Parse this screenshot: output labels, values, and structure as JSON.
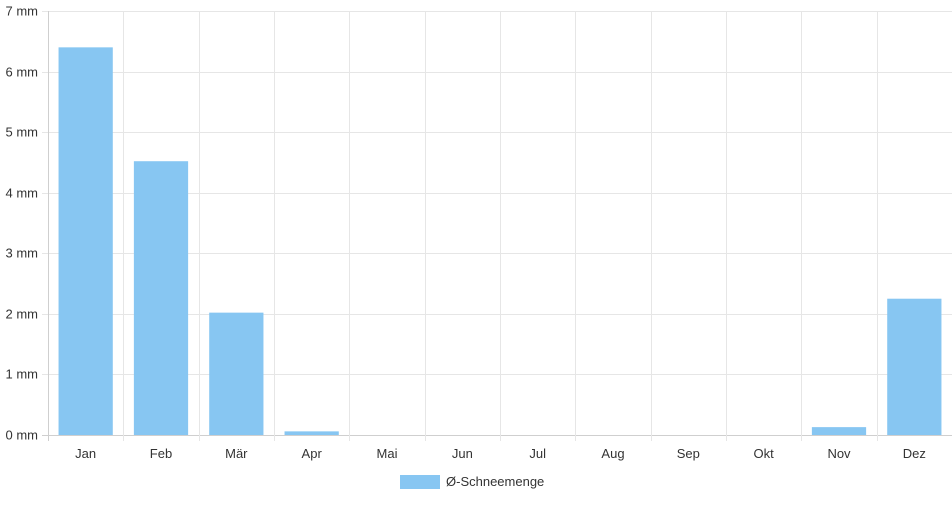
{
  "chart_data": {
    "type": "bar",
    "categories": [
      "Jan",
      "Feb",
      "Mär",
      "Apr",
      "Mai",
      "Jun",
      "Jul",
      "Aug",
      "Sep",
      "Okt",
      "Nov",
      "Dez"
    ],
    "series": [
      {
        "name": "Ø-Schneemenge",
        "values": [
          6.4,
          4.52,
          2.02,
          0.06,
          0,
          0,
          0,
          0,
          0,
          0,
          0.13,
          2.25
        ],
        "color": "#87c6f2"
      }
    ],
    "yticks": [
      "0 mm",
      "1 mm",
      "2 mm",
      "3 mm",
      "4 mm",
      "5 mm",
      "6 mm",
      "7 mm"
    ],
    "ylim": [
      0,
      7
    ],
    "unit": "mm",
    "grid": true,
    "legend_position": "bottom-center",
    "title": "",
    "xlabel": "",
    "ylabel": ""
  }
}
